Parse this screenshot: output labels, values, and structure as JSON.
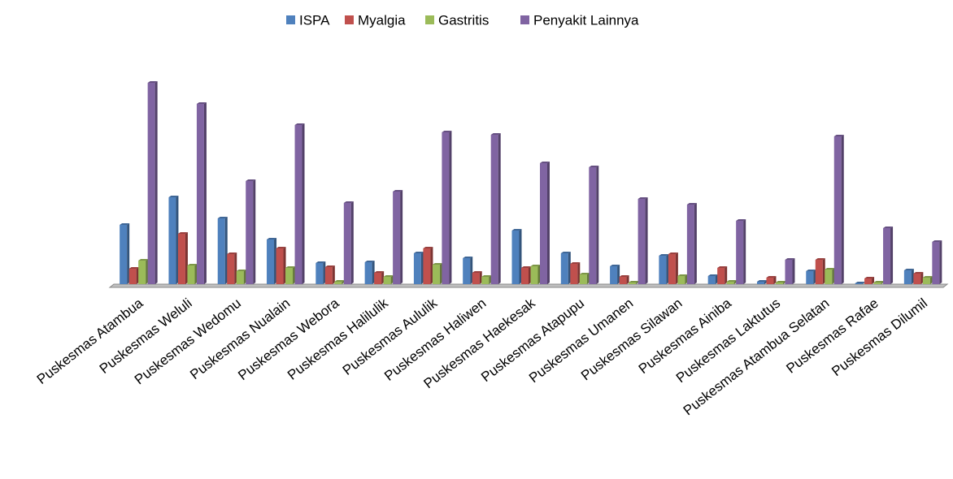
{
  "chart_data": {
    "type": "bar",
    "categories": [
      "Puskesmas Atambua",
      "Puskesmas Weluli",
      "Puskesmas Wedomu",
      "Puskesmas Nualain",
      "Puskesmas Webora",
      "Puskesmas Halilulik",
      "Puskesmas Aululik",
      "Puskesmas Haliwen",
      "Puskesmas Haekesak",
      "Puskesmas Atapupu",
      "Puskesmas Umanen",
      "Puskesmas Silawan",
      "Puskesmas Ainiba",
      "Puskesmas Laktutus",
      "Puskesmas Atambua Selatan",
      "Puskesmas Rafae",
      "Puskesmas Dilumil"
    ],
    "series": [
      {
        "name": "ISPA",
        "color": "#4f81bd",
        "values": [
          73,
          107,
          81,
          55,
          26,
          27,
          38,
          32,
          66,
          38,
          22,
          35,
          10,
          3,
          16,
          1,
          17
        ]
      },
      {
        "name": "Myalgia",
        "color": "#c0504d",
        "values": [
          19,
          62,
          37,
          44,
          21,
          14,
          44,
          14,
          20,
          25,
          9,
          37,
          20,
          8,
          30,
          7,
          13
        ]
      },
      {
        "name": "Gastritis",
        "color": "#9bbb59",
        "values": [
          29,
          23,
          16,
          20,
          3,
          9,
          24,
          9,
          22,
          12,
          2,
          10,
          3,
          2,
          18,
          2,
          8
        ]
      },
      {
        "name": "Penyakit Lainnya",
        "color": "#8064a2",
        "values": [
          248,
          222,
          127,
          196,
          100,
          114,
          187,
          184,
          149,
          144,
          105,
          98,
          78,
          30,
          182,
          69,
          52
        ]
      }
    ],
    "ylim": [
      0,
      260
    ],
    "legend": "top"
  }
}
